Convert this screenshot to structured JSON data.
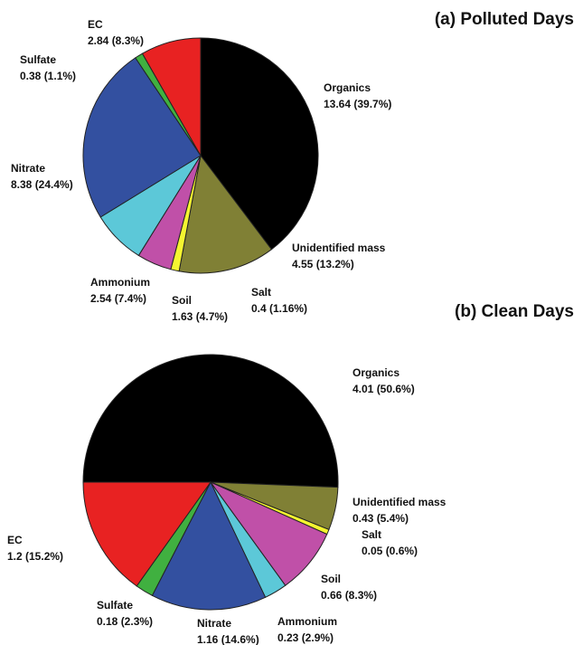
{
  "chart_data": [
    {
      "type": "pie",
      "title": "(a) Polluted Days",
      "categories": [
        "Organics",
        "Unidentified mass",
        "Salt",
        "Soil",
        "Ammonium",
        "Nitrate",
        "Sulfate",
        "EC"
      ],
      "values": [
        13.64,
        4.55,
        0.4,
        1.63,
        2.54,
        8.38,
        0.38,
        2.84
      ],
      "value_labels": [
        "13.64 (39.7%)",
        "4.55 (13.2%)",
        "0.4 (1.16%)",
        "1.63 (4.7%)",
        "2.54 (7.4%)",
        "8.38 (24.4%)",
        "0.38 (1.1%)",
        "2.84 (8.3%)"
      ],
      "colors": [
        "#000000",
        "#808035",
        "#f5f530",
        "#c050a8",
        "#5cc8d8",
        "#3350a0",
        "#40b040",
        "#e82222"
      ]
    },
    {
      "type": "pie",
      "title": "(b) Clean Days",
      "categories": [
        "Organics",
        "Unidentified mass",
        "Salt",
        "Soil",
        "Ammonium",
        "Nitrate",
        "Sulfate",
        "EC"
      ],
      "values": [
        4.01,
        0.43,
        0.05,
        0.66,
        0.23,
        1.16,
        0.18,
        1.2
      ],
      "value_labels": [
        "4.01 (50.6%)",
        "0.43 (5.4%)",
        "0.05 (0.6%)",
        "0.66 (8.3%)",
        "0.23 (2.9%)",
        "1.16 (14.6%)",
        "0.18 (2.3%)",
        "1.2 (15.2%)"
      ],
      "colors": [
        "#000000",
        "#808035",
        "#f5f530",
        "#c050a8",
        "#5cc8d8",
        "#3350a0",
        "#40b040",
        "#e82222"
      ]
    }
  ]
}
